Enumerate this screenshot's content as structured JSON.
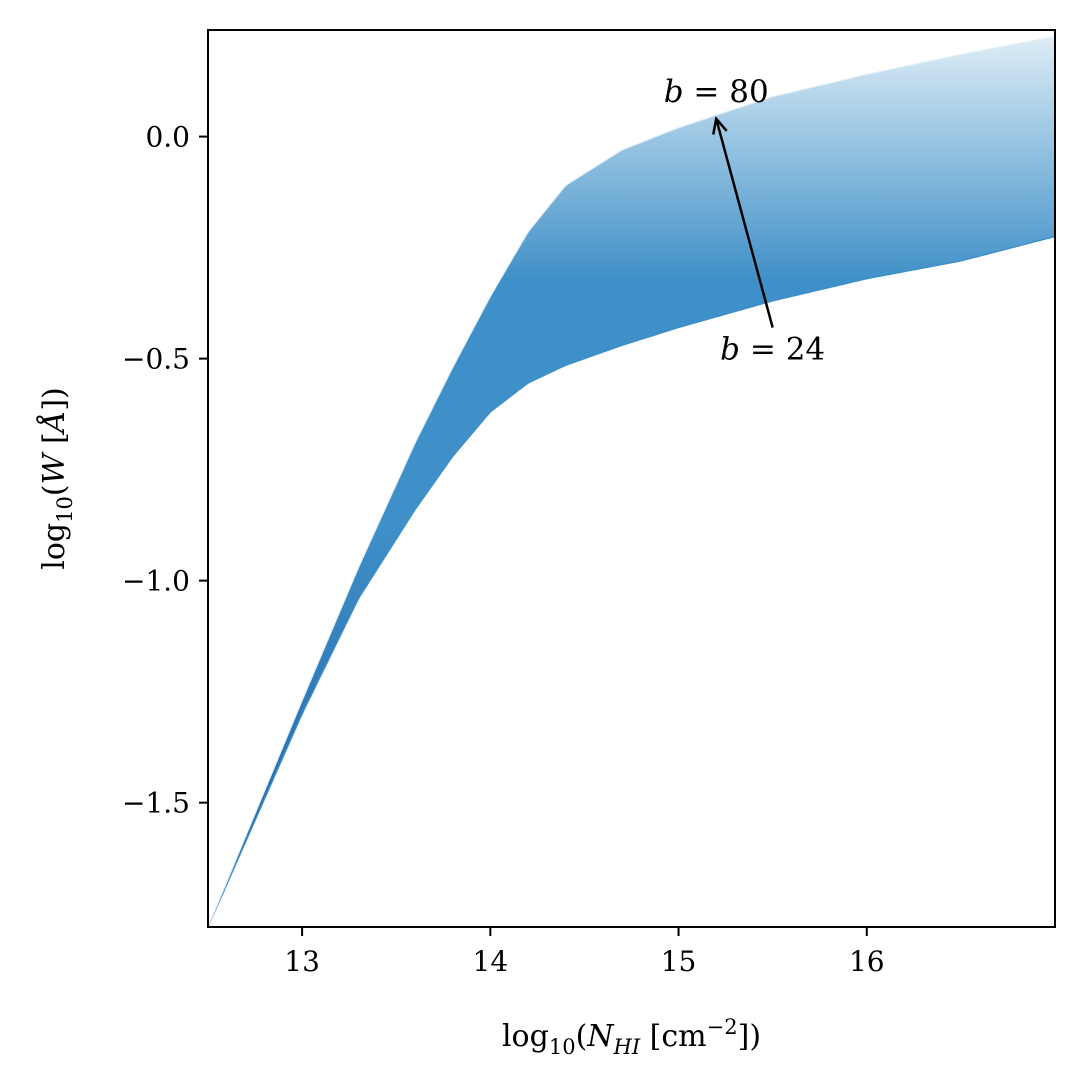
{
  "chart_data": {
    "type": "area",
    "title": "",
    "xlabel": "log10(N_HI [cm^-2])",
    "ylabel": "log10(W [Å])",
    "xlim": [
      12.5,
      17.0
    ],
    "ylim": [
      -1.78,
      0.24
    ],
    "xticks": [
      13,
      14,
      15,
      16
    ],
    "xtick_labels": [
      "13",
      "14",
      "15",
      "16"
    ],
    "yticks": [
      0.0,
      -0.5,
      -1.0,
      -1.5
    ],
    "ytick_labels": [
      "0.0",
      "−0.5",
      "−1.0",
      "−1.5"
    ],
    "grid": false,
    "legend": "none",
    "colors": {
      "dark": "#1f5fa0",
      "mid": "#3f8fc8",
      "light": "#a6cde6",
      "pale": "#e3eff8"
    },
    "series": [
      {
        "param": "b = 24",
        "x": [
          12.5,
          13.0,
          13.3,
          13.6,
          13.8,
          14.0,
          14.2,
          14.4,
          14.7,
          15.0,
          15.5,
          16.0,
          16.5,
          17.0
        ],
        "y": [
          -1.78,
          -1.3,
          -1.04,
          -0.84,
          -0.72,
          -0.62,
          -0.555,
          -0.515,
          -0.47,
          -0.43,
          -0.37,
          -0.32,
          -0.28,
          -0.225
        ]
      },
      {
        "param": "b = 80",
        "x": [
          12.5,
          13.0,
          13.3,
          13.6,
          13.8,
          14.0,
          14.2,
          14.4,
          14.7,
          15.0,
          15.5,
          16.0,
          16.5,
          17.0
        ],
        "y": [
          -1.78,
          -1.27,
          -0.97,
          -0.69,
          -0.52,
          -0.36,
          -0.215,
          -0.11,
          -0.03,
          0.02,
          0.09,
          0.14,
          0.185,
          0.225
        ]
      }
    ],
    "annotations": [
      {
        "text": "b = 80",
        "x": 15.2,
        "y": 0.1
      },
      {
        "text": "b = 24",
        "x": 15.5,
        "y": -0.48
      }
    ],
    "arrow": {
      "from": [
        15.5,
        -0.43
      ],
      "to": [
        15.2,
        0.04
      ]
    }
  }
}
